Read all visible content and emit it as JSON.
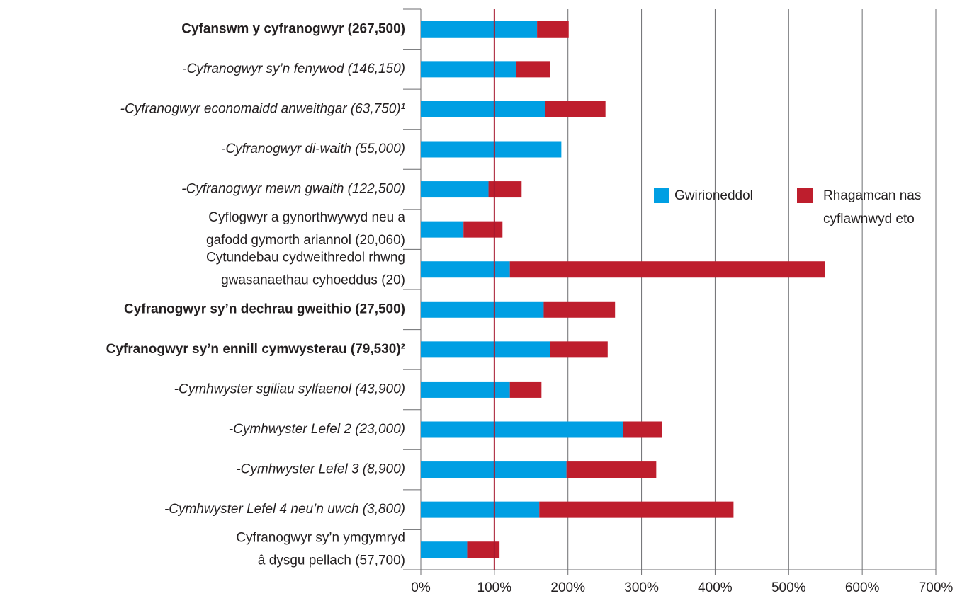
{
  "chart_data": {
    "type": "bar_stacked_horizontal",
    "categories": [
      [
        "Cyfanswm y cyfranogwyr (267,500)"
      ],
      [
        "-Cyfranogwyr sy’n fenywod (146,150)"
      ],
      [
        "-Cyfranogwyr economaidd anweithgar (63,750)¹"
      ],
      [
        "-Cyfranogwyr di-waith (55,000)"
      ],
      [
        "-Cyfranogwyr mewn gwaith (122,500)"
      ],
      [
        "Cyflogwyr a gynorthwywyd neu a",
        "gafodd gymorth ariannol (20,060)"
      ],
      [
        "Cytundebau cydweithredol rhwng",
        "gwasanaethau cyhoeddus (20)"
      ],
      [
        "Cyfranogwyr sy’n dechrau gweithio (27,500)"
      ],
      [
        "Cyfranogwyr sy’n ennill cymwysterau (79,530)²"
      ],
      [
        "-Cymhwyster sgiliau sylfaenol (43,900)"
      ],
      [
        "-Cymhwyster Lefel 2 (23,000)"
      ],
      [
        "-Cymhwyster Lefel 3 (8,900)"
      ],
      [
        "-Cymhwyster Lefel 4 neu’n uwch (3,800)"
      ],
      [
        "Cyfranogwyr sy’n ymgymryd",
        "â dysgu pellach (57,700)"
      ]
    ],
    "category_styles": [
      "bold",
      "italic",
      "italic",
      "italic",
      "italic",
      "normal",
      "normal",
      "bold",
      "bold",
      "italic",
      "italic",
      "italic",
      "italic",
      "normal"
    ],
    "series": [
      {
        "name": "Gwirioneddol",
        "color": "#009fe3",
        "values": [
          158,
          130,
          169,
          191,
          92,
          58,
          121,
          167,
          176,
          121,
          275,
          198,
          161,
          63
        ]
      },
      {
        "name": "Rhagamcan nas cyflawnwyd eto",
        "color": "#be1e2d",
        "values": [
          43,
          46,
          82,
          0,
          45,
          53,
          428,
          97,
          78,
          43,
          53,
          122,
          264,
          44
        ]
      }
    ],
    "xlim": [
      0,
      700
    ],
    "xticks": [
      {
        "value": 0,
        "label": "0%"
      },
      {
        "value": 100,
        "label": "100%"
      },
      {
        "value": 200,
        "label": "200%"
      },
      {
        "value": 300,
        "label": "300%"
      },
      {
        "value": 400,
        "label": "400%"
      },
      {
        "value": 500,
        "label": "500%"
      },
      {
        "value": 600,
        "label": "600%"
      },
      {
        "value": 700,
        "label": "700%"
      }
    ],
    "reference_line": 100,
    "reference_color": "#a6192e",
    "grid": true,
    "legend": "upper right"
  }
}
